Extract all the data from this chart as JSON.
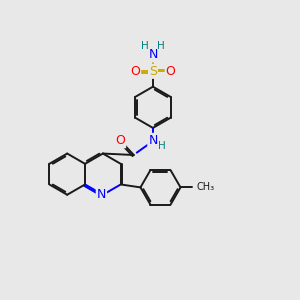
{
  "background_color": "#e8e8e8",
  "C": "#1a1a1a",
  "N": "#0000ff",
  "O": "#ff0000",
  "S": "#ccaa00",
  "H": "#008080",
  "lw": 1.4,
  "dbl": 0.055,
  "figsize": [
    3.0,
    3.0
  ],
  "dpi": 100
}
